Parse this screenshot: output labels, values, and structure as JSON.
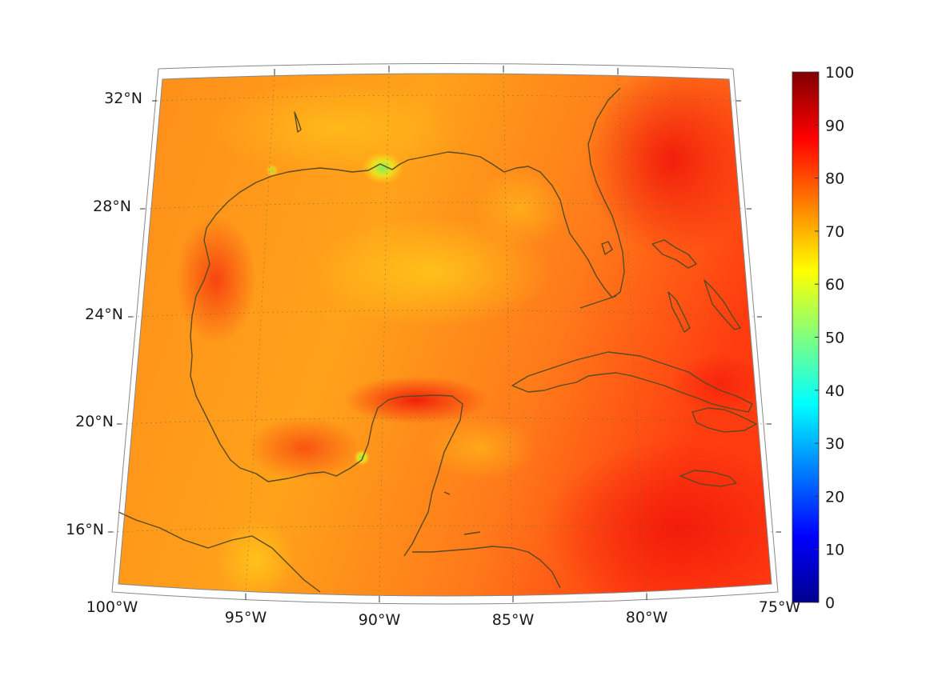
{
  "map": {
    "projection": "conic",
    "region": "Gulf of Mexico and Caribbean",
    "lon_range": [
      -100,
      -75
    ],
    "lat_range": [
      14,
      33
    ],
    "lon_ticks": [
      {
        "value": -100,
        "label": "100°W"
      },
      {
        "value": -95,
        "label": "95°W"
      },
      {
        "value": -90,
        "label": "90°W"
      },
      {
        "value": -85,
        "label": "85°W"
      },
      {
        "value": -80,
        "label": "80°W"
      },
      {
        "value": -75,
        "label": "75°W"
      }
    ],
    "lat_ticks": [
      {
        "value": 32,
        "label": "32°N"
      },
      {
        "value": 28,
        "label": "28°N"
      },
      {
        "value": 24,
        "label": "24°N"
      },
      {
        "value": 20,
        "label": "20°N"
      },
      {
        "value": 16,
        "label": "16°N"
      }
    ],
    "grid": true,
    "coastline_color": "#5a4a22",
    "field_colormap": "jet"
  },
  "colorbar": {
    "min": 0,
    "max": 100,
    "ticks": [
      "0",
      "10",
      "20",
      "30",
      "40",
      "50",
      "60",
      "70",
      "80",
      "90",
      "100"
    ],
    "colormap": "jet"
  }
}
